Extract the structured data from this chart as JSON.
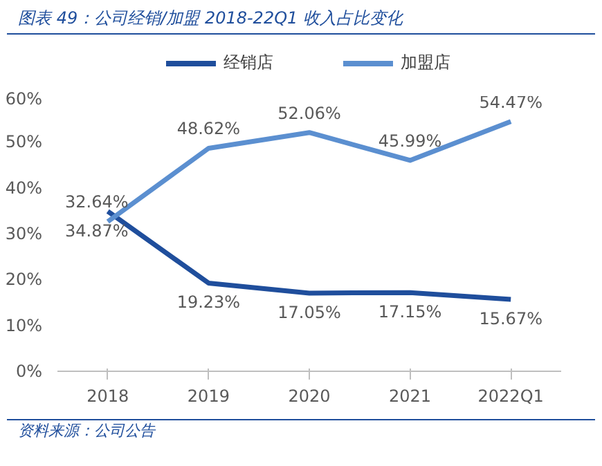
{
  "chart_data": {
    "type": "line",
    "title": "图表 49：公司经销/加盟 2018-22Q1 收入占比变化",
    "categories": [
      "2018",
      "2019",
      "2020",
      "2021",
      "2022Q1"
    ],
    "series": [
      {
        "name": "经销店",
        "color": "#1f4e9c",
        "values": [
          34.87,
          19.23,
          17.05,
          17.15,
          15.67
        ],
        "value_labels": [
          "34.87%",
          "19.23%",
          "17.05%",
          "17.15%",
          "15.67%"
        ]
      },
      {
        "name": "加盟店",
        "color": "#5b8fd0",
        "values": [
          32.64,
          48.62,
          52.06,
          45.99,
          54.47
        ],
        "value_labels": [
          "32.64%",
          "48.62%",
          "52.06%",
          "45.99%",
          "54.47%"
        ]
      }
    ],
    "ylim": [
      0,
      60
    ],
    "yticks": [
      {
        "value": 0,
        "label": "0%"
      },
      {
        "value": 10,
        "label": "10%"
      },
      {
        "value": 20,
        "label": "20%"
      },
      {
        "value": 30,
        "label": "30%"
      },
      {
        "value": 40,
        "label": "40%"
      },
      {
        "value": 50,
        "label": "50%"
      },
      {
        "value": 60,
        "label": "60%"
      }
    ],
    "legend": "top",
    "grid": false,
    "marker": "none",
    "line_style": "solid",
    "annotations": [
      "资料来源：公司公告"
    ]
  }
}
